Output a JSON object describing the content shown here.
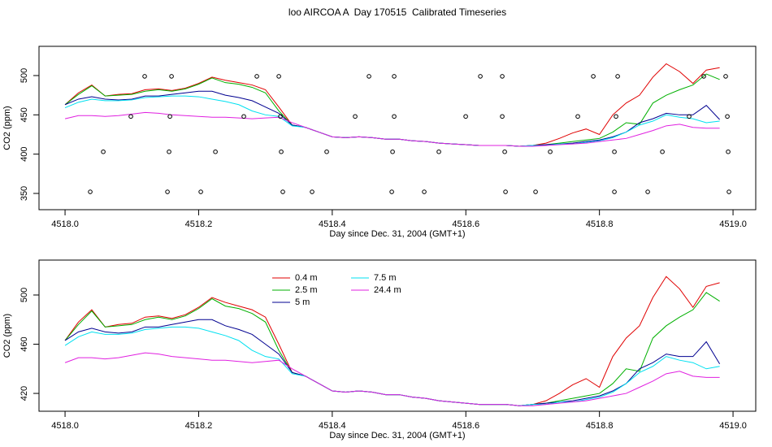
{
  "chart_data": [
    {
      "type": "line",
      "title": "loo AIRCOA A  Day 170515  Calibrated Timeseries",
      "xlabel": "Day since Dec. 31, 2004 (GMT+1)",
      "ylabel": "CO2 (ppm)",
      "xlim": [
        4517.961,
        4519.034
      ],
      "ylim": [
        329.3,
        537.2
      ],
      "xticks": [
        {
          "value": 4518,
          "label": "4518.0"
        },
        4518.2,
        4518.4,
        4518.6,
        4518.8,
        {
          "value": 4519,
          "label": "4519.0"
        }
      ],
      "yticks": [
        350,
        400,
        450,
        500
      ],
      "legend": false,
      "x": [
        4518.0,
        4518.02,
        4518.04,
        4518.06,
        4518.08,
        4518.1,
        4518.12,
        4518.14,
        4518.16,
        4518.18,
        4518.2,
        4518.22,
        4518.24,
        4518.26,
        4518.28,
        4518.3,
        4518.32,
        4518.34,
        4518.36,
        4518.38,
        4518.4,
        4518.42,
        4518.44,
        4518.46,
        4518.48,
        4518.5,
        4518.52,
        4518.54,
        4518.56,
        4518.58,
        4518.6,
        4518.62,
        4518.64,
        4518.66,
        4518.68,
        4518.7,
        4518.72,
        4518.74,
        4518.76,
        4518.78,
        4518.8,
        4518.82,
        4518.84,
        4518.86,
        4518.88,
        4518.9,
        4518.92,
        4518.94,
        4518.96,
        4518.98
      ],
      "series": [
        {
          "name": "0.4 m",
          "color": "#e00000",
          "values": [
            463,
            478,
            488,
            474,
            476,
            477,
            482,
            483,
            481,
            484,
            490,
            498,
            494,
            491,
            488,
            482,
            460,
            437,
            434,
            428,
            422,
            421,
            422,
            421,
            419,
            419,
            417,
            416,
            414,
            413,
            412,
            411,
            411,
            411,
            410,
            411,
            414,
            420,
            427,
            432,
            425,
            450,
            465,
            475,
            498,
            515,
            505,
            490,
            507,
            510
          ]
        },
        {
          "name": "2.5 m",
          "color": "#00b000",
          "values": [
            463,
            476,
            487,
            474,
            475,
            476,
            480,
            482,
            480,
            483,
            489,
            497,
            491,
            489,
            485,
            478,
            455,
            437,
            434,
            428,
            422,
            421,
            422,
            421,
            419,
            419,
            417,
            416,
            414,
            413,
            412,
            411,
            411,
            411,
            410,
            411,
            412,
            414,
            416,
            418,
            420,
            428,
            440,
            438,
            465,
            475,
            482,
            488,
            502,
            495
          ]
        },
        {
          "name": "5 m",
          "color": "#000090",
          "values": [
            463,
            470,
            473,
            470,
            469,
            470,
            474,
            474,
            476,
            478,
            480,
            480,
            475,
            472,
            468,
            460,
            452,
            437,
            434,
            428,
            422,
            421,
            422,
            421,
            419,
            419,
            417,
            416,
            414,
            413,
            412,
            411,
            411,
            411,
            410,
            411,
            412,
            413,
            414,
            416,
            418,
            422,
            428,
            440,
            445,
            452,
            450,
            450,
            462,
            444
          ]
        },
        {
          "name": "7.5 m",
          "color": "#00e0f0",
          "values": [
            459,
            466,
            470,
            468,
            468,
            469,
            472,
            473,
            474,
            474,
            473,
            470,
            467,
            463,
            455,
            450,
            448,
            436,
            434,
            428,
            422,
            421,
            422,
            421,
            419,
            419,
            417,
            416,
            414,
            413,
            412,
            411,
            411,
            411,
            410,
            411,
            411,
            413,
            413,
            415,
            417,
            421,
            428,
            437,
            442,
            450,
            447,
            445,
            440,
            442
          ]
        },
        {
          "name": "24.4 m",
          "color": "#e020e0",
          "values": [
            445,
            449,
            449,
            448,
            449,
            451,
            453,
            452,
            450,
            449,
            448,
            447,
            447,
            446,
            445,
            446,
            447,
            440,
            434,
            428,
            422,
            421,
            422,
            421,
            419,
            419,
            417,
            416,
            414,
            413,
            412,
            411,
            411,
            411,
            410,
            410,
            411,
            412,
            413,
            414,
            416,
            418,
            420,
            425,
            430,
            436,
            438,
            434,
            433,
            433
          ]
        }
      ],
      "points": {
        "color": "#000000",
        "x": [
          4518.1192,
          4518.1594,
          4518.2871,
          4518.32,
          4518.455,
          4518.4927,
          4518.6217,
          4518.6545,
          4518.7908,
          4518.8273,
          4518.9562,
          4518.989,
          4518.0985,
          4518.157,
          4518.2676,
          4518.3224,
          4518.4343,
          4518.4927,
          4518.5998,
          4518.6545,
          4518.7676,
          4518.8248,
          4518.9343,
          4518.9915,
          4518.0572,
          4518.1557,
          4518.2251,
          4518.3236,
          4518.3917,
          4518.4903,
          4518.5596,
          4518.6582,
          4518.7263,
          4518.8224,
          4518.8942,
          4518.9927,
          4518.0377,
          4518.1533,
          4518.2032,
          4518.326,
          4518.3698,
          4518.4891,
          4518.5377,
          4518.6594,
          4518.7044,
          4518.8224,
          4518.8723,
          4518.9939
        ],
        "y": [
          499,
          499,
          499,
          499,
          499,
          499,
          499,
          499,
          499,
          499,
          499,
          499,
          448,
          448,
          448,
          448,
          448,
          448,
          448,
          448,
          448,
          448,
          448,
          448,
          403,
          403,
          403,
          403,
          403,
          403,
          403,
          403,
          403,
          403,
          403,
          403,
          352,
          352,
          352,
          352,
          352,
          352,
          352,
          352,
          352,
          352,
          352,
          352
        ]
      }
    },
    {
      "type": "line",
      "xlabel": "Day since Dec. 31, 2004 (GMT+1)",
      "ylabel": "CO2 (ppm)",
      "xlim": [
        4517.961,
        4519.034
      ],
      "ylim": [
        405.5,
        528.4
      ],
      "xticks": [
        {
          "value": 4518,
          "label": "4518.0"
        },
        4518.2,
        4518.4,
        4518.6,
        4518.8,
        {
          "value": 4519,
          "label": "4519.0"
        }
      ],
      "yticks": [
        420,
        460,
        500
      ],
      "legend": "top",
      "x": [
        4518.0,
        4518.02,
        4518.04,
        4518.06,
        4518.08,
        4518.1,
        4518.12,
        4518.14,
        4518.16,
        4518.18,
        4518.2,
        4518.22,
        4518.24,
        4518.26,
        4518.28,
        4518.3,
        4518.32,
        4518.34,
        4518.36,
        4518.38,
        4518.4,
        4518.42,
        4518.44,
        4518.46,
        4518.48,
        4518.5,
        4518.52,
        4518.54,
        4518.56,
        4518.58,
        4518.6,
        4518.62,
        4518.64,
        4518.66,
        4518.68,
        4518.7,
        4518.72,
        4518.74,
        4518.76,
        4518.78,
        4518.8,
        4518.82,
        4518.84,
        4518.86,
        4518.88,
        4518.9,
        4518.92,
        4518.94,
        4518.96,
        4518.98
      ],
      "series": [
        {
          "name": "0.4 m",
          "color": "#e00000",
          "values": [
            463,
            478,
            488,
            474,
            476,
            477,
            482,
            483,
            481,
            484,
            490,
            498,
            494,
            491,
            488,
            482,
            460,
            437,
            434,
            428,
            422,
            421,
            422,
            421,
            419,
            419,
            417,
            416,
            414,
            413,
            412,
            411,
            411,
            411,
            410,
            411,
            414,
            420,
            427,
            432,
            425,
            450,
            465,
            475,
            498,
            515,
            505,
            490,
            507,
            510
          ]
        },
        {
          "name": "2.5 m",
          "color": "#00b000",
          "values": [
            463,
            476,
            487,
            474,
            475,
            476,
            480,
            482,
            480,
            483,
            489,
            497,
            491,
            489,
            485,
            478,
            455,
            437,
            434,
            428,
            422,
            421,
            422,
            421,
            419,
            419,
            417,
            416,
            414,
            413,
            412,
            411,
            411,
            411,
            410,
            411,
            412,
            414,
            416,
            418,
            420,
            428,
            440,
            438,
            465,
            475,
            482,
            488,
            502,
            495
          ]
        },
        {
          "name": "5 m",
          "color": "#000090",
          "values": [
            463,
            470,
            473,
            470,
            469,
            470,
            474,
            474,
            476,
            478,
            480,
            480,
            475,
            472,
            468,
            460,
            452,
            437,
            434,
            428,
            422,
            421,
            422,
            421,
            419,
            419,
            417,
            416,
            414,
            413,
            412,
            411,
            411,
            411,
            410,
            411,
            412,
            413,
            414,
            416,
            418,
            422,
            428,
            440,
            445,
            452,
            450,
            450,
            462,
            444
          ]
        },
        {
          "name": "7.5 m",
          "color": "#00e0f0",
          "values": [
            459,
            466,
            470,
            468,
            468,
            469,
            472,
            473,
            474,
            474,
            473,
            470,
            467,
            463,
            455,
            450,
            448,
            436,
            434,
            428,
            422,
            421,
            422,
            421,
            419,
            419,
            417,
            416,
            414,
            413,
            412,
            411,
            411,
            411,
            410,
            411,
            411,
            413,
            413,
            415,
            417,
            421,
            428,
            437,
            442,
            450,
            447,
            445,
            440,
            442
          ]
        },
        {
          "name": "24.4 m",
          "color": "#e020e0",
          "values": [
            445,
            449,
            449,
            448,
            449,
            451,
            453,
            452,
            450,
            449,
            448,
            447,
            447,
            446,
            445,
            446,
            447,
            440,
            434,
            428,
            422,
            421,
            422,
            421,
            419,
            419,
            417,
            416,
            414,
            413,
            412,
            411,
            411,
            411,
            410,
            410,
            411,
            412,
            413,
            414,
            416,
            418,
            420,
            425,
            430,
            436,
            438,
            434,
            433,
            433
          ]
        }
      ]
    }
  ]
}
